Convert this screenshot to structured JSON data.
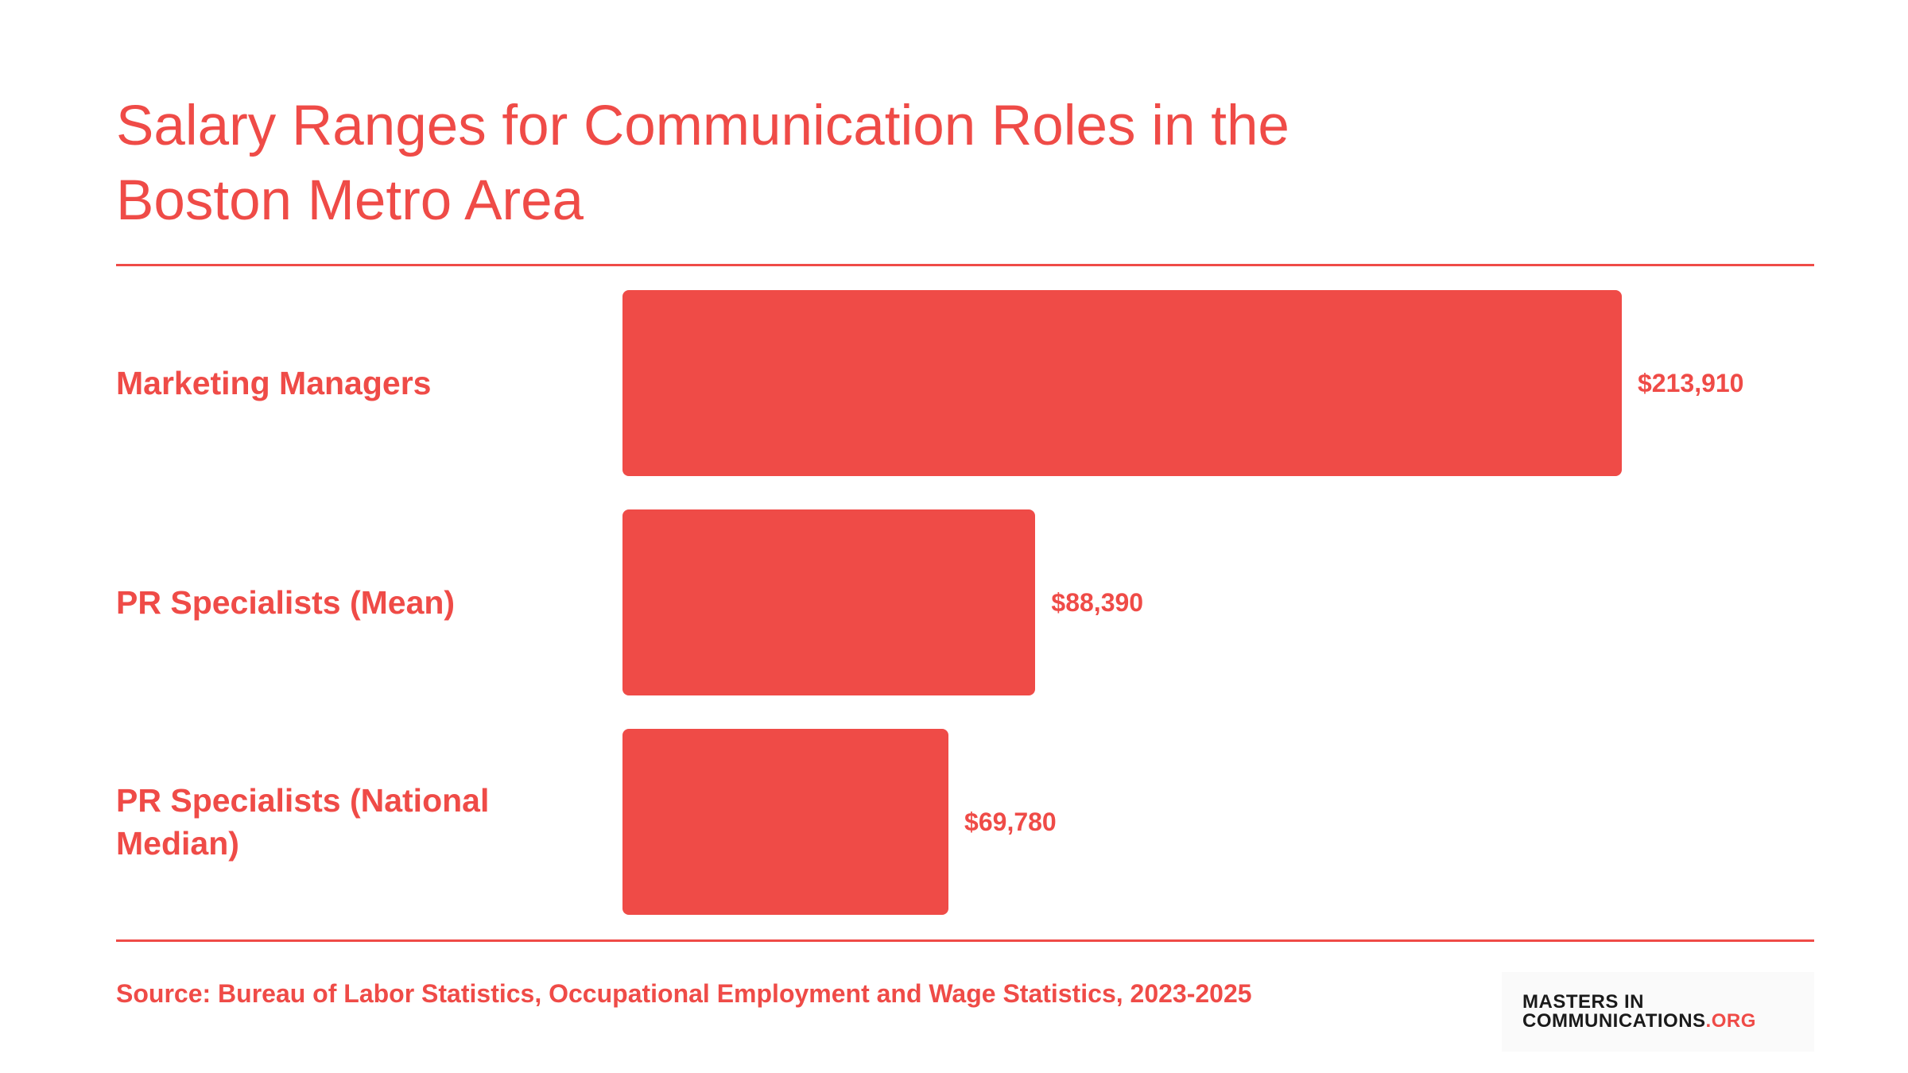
{
  "chart_data": {
    "type": "bar",
    "orientation": "horizontal",
    "title": "Salary Ranges for Communication Roles in the Boston Metro Area",
    "categories": [
      "Marketing Managers",
      "PR Specialists (Mean)",
      "PR Specialists (National Median)"
    ],
    "values": [
      213910,
      88390,
      69780
    ],
    "value_labels": [
      "$213,910",
      "$88,390",
      "$69,780"
    ],
    "color": "#ef4b47",
    "source": "Source: Bureau of Labor Statistics, Occupational Employment and Wage Statistics, 2023-2025"
  },
  "logo": {
    "line1": "MASTERS IN",
    "line2": "COMMUNICATIONS",
    "suffix": ".ORG"
  }
}
